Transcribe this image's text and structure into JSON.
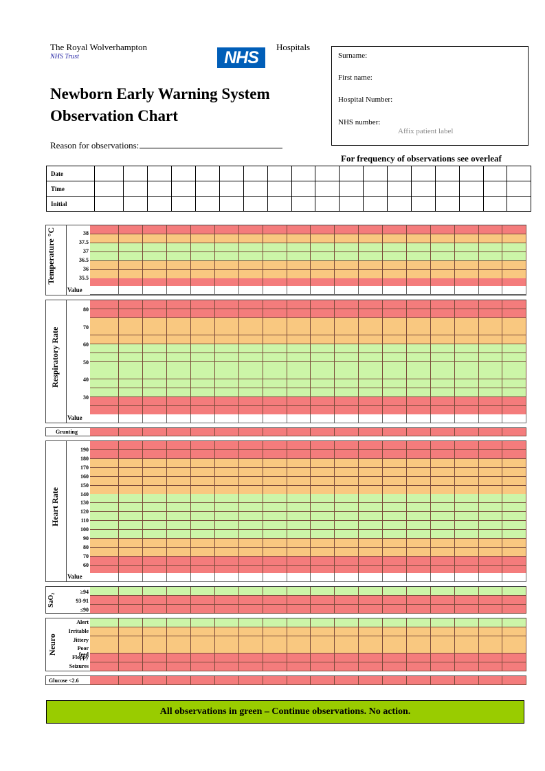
{
  "header": {
    "trust_name": "The Royal Wolverhampton",
    "trust_sub": "NHS Trust",
    "hospitals": "Hospitals",
    "logo_text": "NHS",
    "title_line1": "Newborn Early Warning System",
    "title_line2": "Observation Chart",
    "reason_label": "Reason for observations:"
  },
  "patient": {
    "surname": "Surname:",
    "first_name": "First name:",
    "hospital_number": "Hospital Number:",
    "nhs_number": "NHS number:",
    "affix": "Affix patient label"
  },
  "frequency_note": "For frequency of observations see overleaf",
  "header_rows": [
    "Date",
    "Time",
    "Initial"
  ],
  "value_label": "Value",
  "sections": {
    "temperature": {
      "label": "Temperature °C",
      "ticks": [
        "38",
        "37.5",
        "37",
        "36.5",
        "36",
        "35.5"
      ]
    },
    "respiratory": {
      "label": "Respiratory Rate",
      "ticks": [
        "80",
        "70",
        "60",
        "50",
        "40",
        "30"
      ]
    },
    "grunting": "Grunting",
    "heart": {
      "label": "Heart Rate",
      "ticks": [
        "190",
        "180",
        "170",
        "160",
        "150",
        "140",
        "130",
        "120",
        "110",
        "100",
        "90",
        "80",
        "70",
        "60"
      ]
    },
    "sao2": {
      "label": "SaO₂",
      "rows": [
        "≥94",
        "93-91",
        "≤90"
      ]
    },
    "neuro": {
      "label": "Neuro",
      "rows": [
        "Alert",
        "Irritable",
        "Jittery",
        "Poor feed",
        "Floppy",
        "Seizures"
      ]
    },
    "glucose": "Glucose <2.6"
  },
  "banner": "All observations in green – Continue observations. No action.",
  "colors": {
    "red": "#f47c7c",
    "amber": "#f9c880",
    "green": "#ccf5a8",
    "banner": "#99cc00",
    "nhs_blue": "#005eb8"
  }
}
